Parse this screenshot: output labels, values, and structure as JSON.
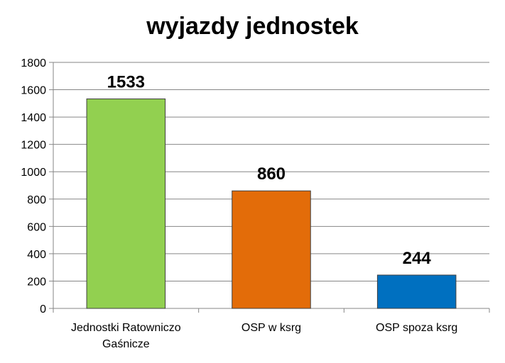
{
  "chart_data": {
    "type": "bar",
    "title": "wyjazdy jednostek",
    "categories": [
      [
        "Jednostki Ratowniczo",
        "Gaśnicze"
      ],
      [
        "OSP w ksrg"
      ],
      [
        "OSP spoza ksrg"
      ]
    ],
    "values": [
      1533,
      860,
      244
    ],
    "data_labels": [
      "1533",
      "860",
      "244"
    ],
    "bar_colors": [
      "#92d050",
      "#e36c09",
      "#0070c0"
    ],
    "ylim": [
      0,
      1800
    ],
    "yticks": [
      0,
      200,
      400,
      600,
      800,
      1000,
      1200,
      1400,
      1600,
      1800
    ],
    "ytick_labels": [
      "0",
      "200",
      "400",
      "600",
      "800",
      "1000",
      "1200",
      "1400",
      "1600",
      "1800"
    ],
    "grid": true,
    "legend": "none",
    "xlabel": "",
    "ylabel": ""
  }
}
